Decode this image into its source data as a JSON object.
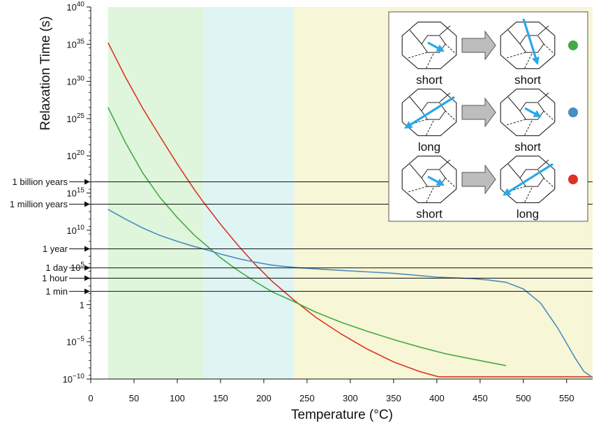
{
  "chart_data": {
    "type": "line",
    "xlabel": "Temperature (°C)",
    "ylabel": "Relaxation Time (s)",
    "xlim": [
      0,
      580
    ],
    "ylim_log10": [
      -10,
      40
    ],
    "y_scale": "log",
    "x_ticks": [
      "0",
      "50",
      "100",
      "150",
      "200",
      "250",
      "300",
      "350",
      "400",
      "450",
      "500",
      "550"
    ],
    "x_tick_values": [
      0,
      50,
      100,
      150,
      200,
      250,
      300,
      350,
      400,
      450,
      500,
      550
    ],
    "y_ticks": [
      {
        "exp": -10,
        "base": "10",
        "sup": "−10"
      },
      {
        "exp": -5,
        "base": "10",
        "sup": "−5"
      },
      {
        "exp": 0,
        "base": "1",
        "sup": ""
      },
      {
        "exp": 5,
        "base": "10",
        "sup": "5"
      },
      {
        "exp": 10,
        "base": "10",
        "sup": "10"
      },
      {
        "exp": 15,
        "base": "10",
        "sup": "15"
      },
      {
        "exp": 20,
        "base": "10",
        "sup": "20"
      },
      {
        "exp": 25,
        "base": "10",
        "sup": "25"
      },
      {
        "exp": 30,
        "base": "10",
        "sup": "30"
      },
      {
        "exp": 35,
        "base": "10",
        "sup": "35"
      },
      {
        "exp": 40,
        "base": "10",
        "sup": "40"
      }
    ],
    "shaded_regions": [
      {
        "x": [
          20,
          130
        ],
        "color": "#dff6dc"
      },
      {
        "x": [
          130,
          235
        ],
        "color": "#def5f4"
      },
      {
        "x": [
          235,
          580
        ],
        "color": "#f7f6d6"
      }
    ],
    "reference_lines": [
      {
        "label": "1 billion years",
        "log10_seconds": 16.5
      },
      {
        "label": "1 million years",
        "log10_seconds": 13.5
      },
      {
        "label": "1 year",
        "log10_seconds": 7.5
      },
      {
        "label": "1 day",
        "log10_seconds": 4.94
      },
      {
        "label": "1 hour",
        "log10_seconds": 3.56
      },
      {
        "label": "1 min",
        "log10_seconds": 1.78
      }
    ],
    "series": [
      {
        "color": "#dd3322",
        "x": [
          20,
          40,
          60,
          80,
          100,
          120,
          130,
          150,
          170,
          190,
          210,
          235,
          260,
          290,
          320,
          350,
          380,
          402,
          430,
          480,
          530,
          580
        ],
        "log10_y": [
          35.2,
          30.6,
          26.4,
          22.6,
          18.9,
          15.4,
          13.8,
          10.8,
          8.0,
          5.4,
          3.1,
          0.6,
          -1.7,
          -4.0,
          -6.0,
          -7.7,
          -9.0,
          -9.7,
          -9.7,
          -9.7,
          -9.7,
          -9.7
        ]
      },
      {
        "color": "#44aa44",
        "x": [
          20,
          40,
          60,
          80,
          100,
          120,
          130,
          150,
          170,
          190,
          210,
          235,
          260,
          290,
          320,
          350,
          380,
          410,
          440,
          480
        ],
        "log10_y": [
          26.5,
          21.8,
          17.7,
          14.4,
          11.7,
          9.3,
          8.3,
          6.3,
          4.6,
          3.1,
          1.7,
          0.4,
          -1.0,
          -2.4,
          -3.6,
          -4.7,
          -5.7,
          -6.6,
          -7.3,
          -8.2
        ]
      },
      {
        "color": "#4a8dc0",
        "x": [
          20,
          40,
          60,
          80,
          100,
          120,
          130,
          150,
          170,
          190,
          210,
          235,
          260,
          290,
          320,
          350,
          380,
          400,
          420,
          440,
          460,
          480,
          500,
          520,
          540,
          560,
          570,
          580
        ],
        "log10_y": [
          12.8,
          11.5,
          10.3,
          9.3,
          8.5,
          7.8,
          7.5,
          6.8,
          6.2,
          5.7,
          5.3,
          5.0,
          4.8,
          4.6,
          4.4,
          4.2,
          3.9,
          3.7,
          3.6,
          3.5,
          3.3,
          3.0,
          2.1,
          0.2,
          -3.2,
          -7.2,
          -9.0,
          -9.8
        ]
      }
    ],
    "inset": {
      "rows": [
        {
          "from": "short",
          "to": "short",
          "dot": "#44aa44"
        },
        {
          "from": "long",
          "to": "short",
          "dot": "#4a8dc0"
        },
        {
          "from": "short",
          "to": "long",
          "dot": "#dd3322"
        }
      ]
    }
  }
}
